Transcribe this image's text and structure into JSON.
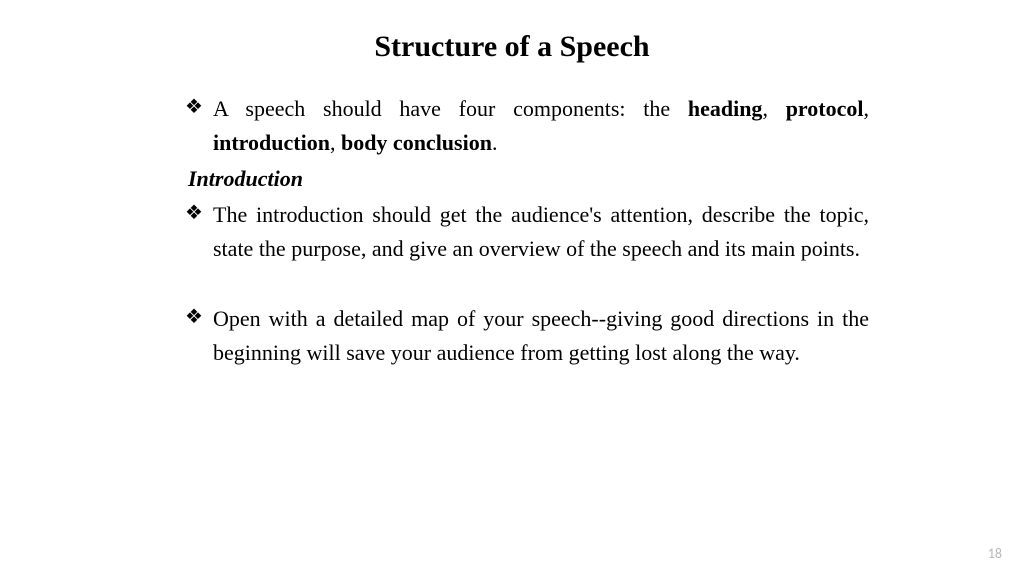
{
  "title": "Structure of a Speech",
  "items": {
    "b1_pre": "A speech should have four components: the ",
    "b1_bold1": "heading",
    "b1_comma1": ", ",
    "b1_bold2": "protocol",
    "b1_comma2": ", ",
    "b1_bold3": "introduction",
    "b1_comma3": ", ",
    "b1_bold4": "body conclusion",
    "b1_end": ".",
    "subheading": "Introduction",
    "b2": "The introduction should get the audience's attention, describe the topic, state the purpose, and give an overview of the speech and its main points.",
    "b3": "Open with a detailed map of your speech--giving good directions in the beginning will save your audience from getting lost along the way."
  },
  "page_number": "18",
  "colors": {
    "text": "#000000",
    "background": "#ffffff",
    "page_number": "#b8b8b8"
  },
  "fonts": {
    "body_size": 22,
    "title_size": 30,
    "page_num_size": 14
  }
}
